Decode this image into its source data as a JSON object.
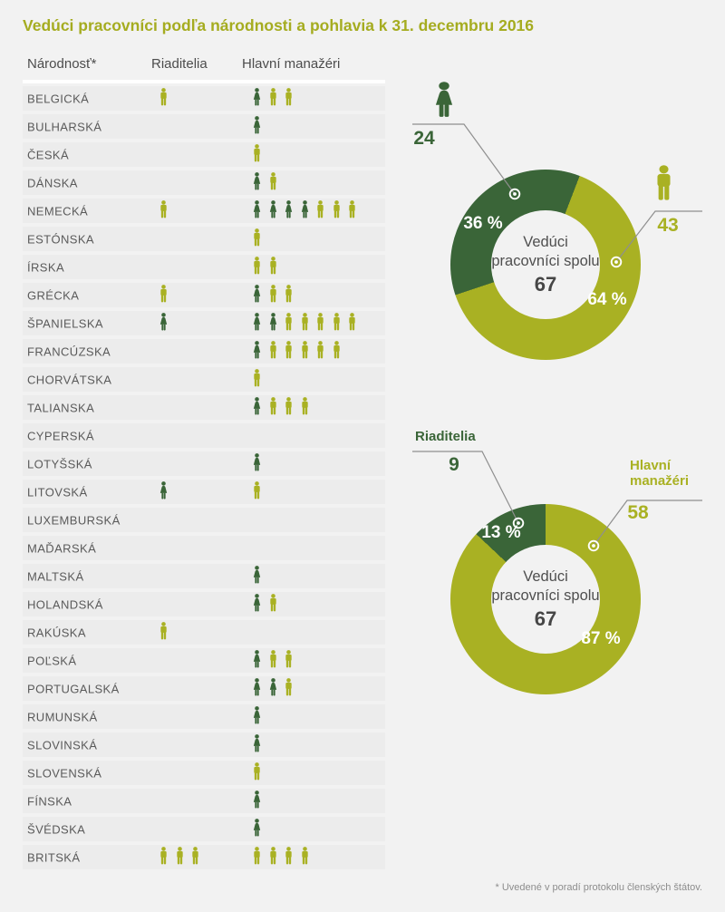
{
  "title": "Vedúci pracovníci podľa národnosti a pohlavia k 31. decembru 2016",
  "footnote": "* Uvedené v poradí protokolu členských štátov.",
  "colors": {
    "female_dark_green": "#3a6538",
    "male_olive": "#a9b123",
    "title_olive": "#a5ac20",
    "row_band": "#ececec",
    "background": "#f2f2f2",
    "pct_label_white": "#ffffff"
  },
  "table": {
    "headers": {
      "nationality": "Národnosť*",
      "directors": "Riaditelia",
      "managers": "Hlavní manažéri"
    },
    "rows": [
      {
        "nationality": "BELGICKÁ",
        "directors": {
          "female": 0,
          "male": 1
        },
        "managers": {
          "female": 1,
          "male": 2
        }
      },
      {
        "nationality": "BULHARSKÁ",
        "directors": {
          "female": 0,
          "male": 0
        },
        "managers": {
          "female": 1,
          "male": 0
        }
      },
      {
        "nationality": "ČESKÁ",
        "directors": {
          "female": 0,
          "male": 0
        },
        "managers": {
          "female": 0,
          "male": 1
        }
      },
      {
        "nationality": "DÁNSKA",
        "directors": {
          "female": 0,
          "male": 0
        },
        "managers": {
          "female": 1,
          "male": 1
        }
      },
      {
        "nationality": "NEMECKÁ",
        "directors": {
          "female": 0,
          "male": 1
        },
        "managers": {
          "female": 4,
          "male": 3
        }
      },
      {
        "nationality": "ESTÓNSKA",
        "directors": {
          "female": 0,
          "male": 0
        },
        "managers": {
          "female": 0,
          "male": 1
        }
      },
      {
        "nationality": "ÍRSKA",
        "directors": {
          "female": 0,
          "male": 0
        },
        "managers": {
          "female": 0,
          "male": 2
        }
      },
      {
        "nationality": "GRÉCKA",
        "directors": {
          "female": 0,
          "male": 1
        },
        "managers": {
          "female": 1,
          "male": 2
        }
      },
      {
        "nationality": "ŠPANIELSKA",
        "directors": {
          "female": 1,
          "male": 0
        },
        "managers": {
          "female": 2,
          "male": 5
        }
      },
      {
        "nationality": "FRANCÚZSKA",
        "directors": {
          "female": 0,
          "male": 0
        },
        "managers": {
          "female": 1,
          "male": 5
        }
      },
      {
        "nationality": "CHORVÁTSKA",
        "directors": {
          "female": 0,
          "male": 0
        },
        "managers": {
          "female": 0,
          "male": 1
        }
      },
      {
        "nationality": "TALIANSKA",
        "directors": {
          "female": 0,
          "male": 0
        },
        "managers": {
          "female": 1,
          "male": 3
        }
      },
      {
        "nationality": "CYPERSKÁ",
        "directors": {
          "female": 0,
          "male": 0
        },
        "managers": {
          "female": 0,
          "male": 0
        }
      },
      {
        "nationality": "LOTYŠSKÁ",
        "directors": {
          "female": 0,
          "male": 0
        },
        "managers": {
          "female": 1,
          "male": 0
        }
      },
      {
        "nationality": "LITOVSKÁ",
        "directors": {
          "female": 1,
          "male": 0
        },
        "managers": {
          "female": 0,
          "male": 1
        }
      },
      {
        "nationality": "LUXEMBURSKÁ",
        "directors": {
          "female": 0,
          "male": 0
        },
        "managers": {
          "female": 0,
          "male": 0
        }
      },
      {
        "nationality": "MAĎARSKÁ",
        "directors": {
          "female": 0,
          "male": 0
        },
        "managers": {
          "female": 0,
          "male": 0
        }
      },
      {
        "nationality": "MALTSKÁ",
        "directors": {
          "female": 0,
          "male": 0
        },
        "managers": {
          "female": 1,
          "male": 0
        }
      },
      {
        "nationality": "HOLANDSKÁ",
        "directors": {
          "female": 0,
          "male": 0
        },
        "managers": {
          "female": 1,
          "male": 1
        }
      },
      {
        "nationality": "RAKÚSKA",
        "directors": {
          "female": 0,
          "male": 1
        },
        "managers": {
          "female": 0,
          "male": 0
        }
      },
      {
        "nationality": "POĽSKÁ",
        "directors": {
          "female": 0,
          "male": 0
        },
        "managers": {
          "female": 1,
          "male": 2
        }
      },
      {
        "nationality": "PORTUGALSKÁ",
        "directors": {
          "female": 0,
          "male": 0
        },
        "managers": {
          "female": 2,
          "male": 1
        }
      },
      {
        "nationality": "RUMUNSKÁ",
        "directors": {
          "female": 0,
          "male": 0
        },
        "managers": {
          "female": 1,
          "male": 0
        }
      },
      {
        "nationality": "SLOVINSKÁ",
        "directors": {
          "female": 0,
          "male": 0
        },
        "managers": {
          "female": 1,
          "male": 0
        }
      },
      {
        "nationality": "SLOVENSKÁ",
        "directors": {
          "female": 0,
          "male": 0
        },
        "managers": {
          "female": 0,
          "male": 1
        }
      },
      {
        "nationality": "FÍNSKA",
        "directors": {
          "female": 0,
          "male": 0
        },
        "managers": {
          "female": 1,
          "male": 0
        }
      },
      {
        "nationality": "ŠVÉDSKA",
        "directors": {
          "female": 0,
          "male": 0
        },
        "managers": {
          "female": 1,
          "male": 0
        }
      },
      {
        "nationality": "BRITSKÁ",
        "directors": {
          "female": 0,
          "male": 3
        },
        "managers": {
          "female": 0,
          "male": 4
        }
      }
    ]
  },
  "chart_data": [
    {
      "type": "pie",
      "subtype": "donut",
      "title": "Vedúci pracovníci spolu podľa pohlavia",
      "center_text_line1": "Vedúci",
      "center_text_line2": "pracovníci spolu",
      "center_value": "67",
      "end_angle_deg": 21,
      "slices": [
        {
          "label": "female",
          "icon": "female-icon",
          "value": "24",
          "pct": 36,
          "pct_label": "36 %",
          "color": "#3a6538"
        },
        {
          "label": "male",
          "icon": "male-icon",
          "value": "43",
          "pct": 64,
          "pct_label": "64 %",
          "color": "#a9b123"
        }
      ]
    },
    {
      "type": "pie",
      "subtype": "donut",
      "title": "Vedúci pracovníci spolu podľa funkcie",
      "center_text_line1": "Vedúci",
      "center_text_line2": "pracovníci spolu",
      "center_value": "67",
      "end_angle_deg": 0,
      "slices": [
        {
          "label": "Riaditelia",
          "value": "9",
          "pct": 13,
          "pct_label": "13 %",
          "color": "#3a6538"
        },
        {
          "label": "Hlavní manažéri",
          "value": "58",
          "pct": 87,
          "pct_label": "87 %",
          "color": "#a9b123"
        }
      ]
    }
  ]
}
